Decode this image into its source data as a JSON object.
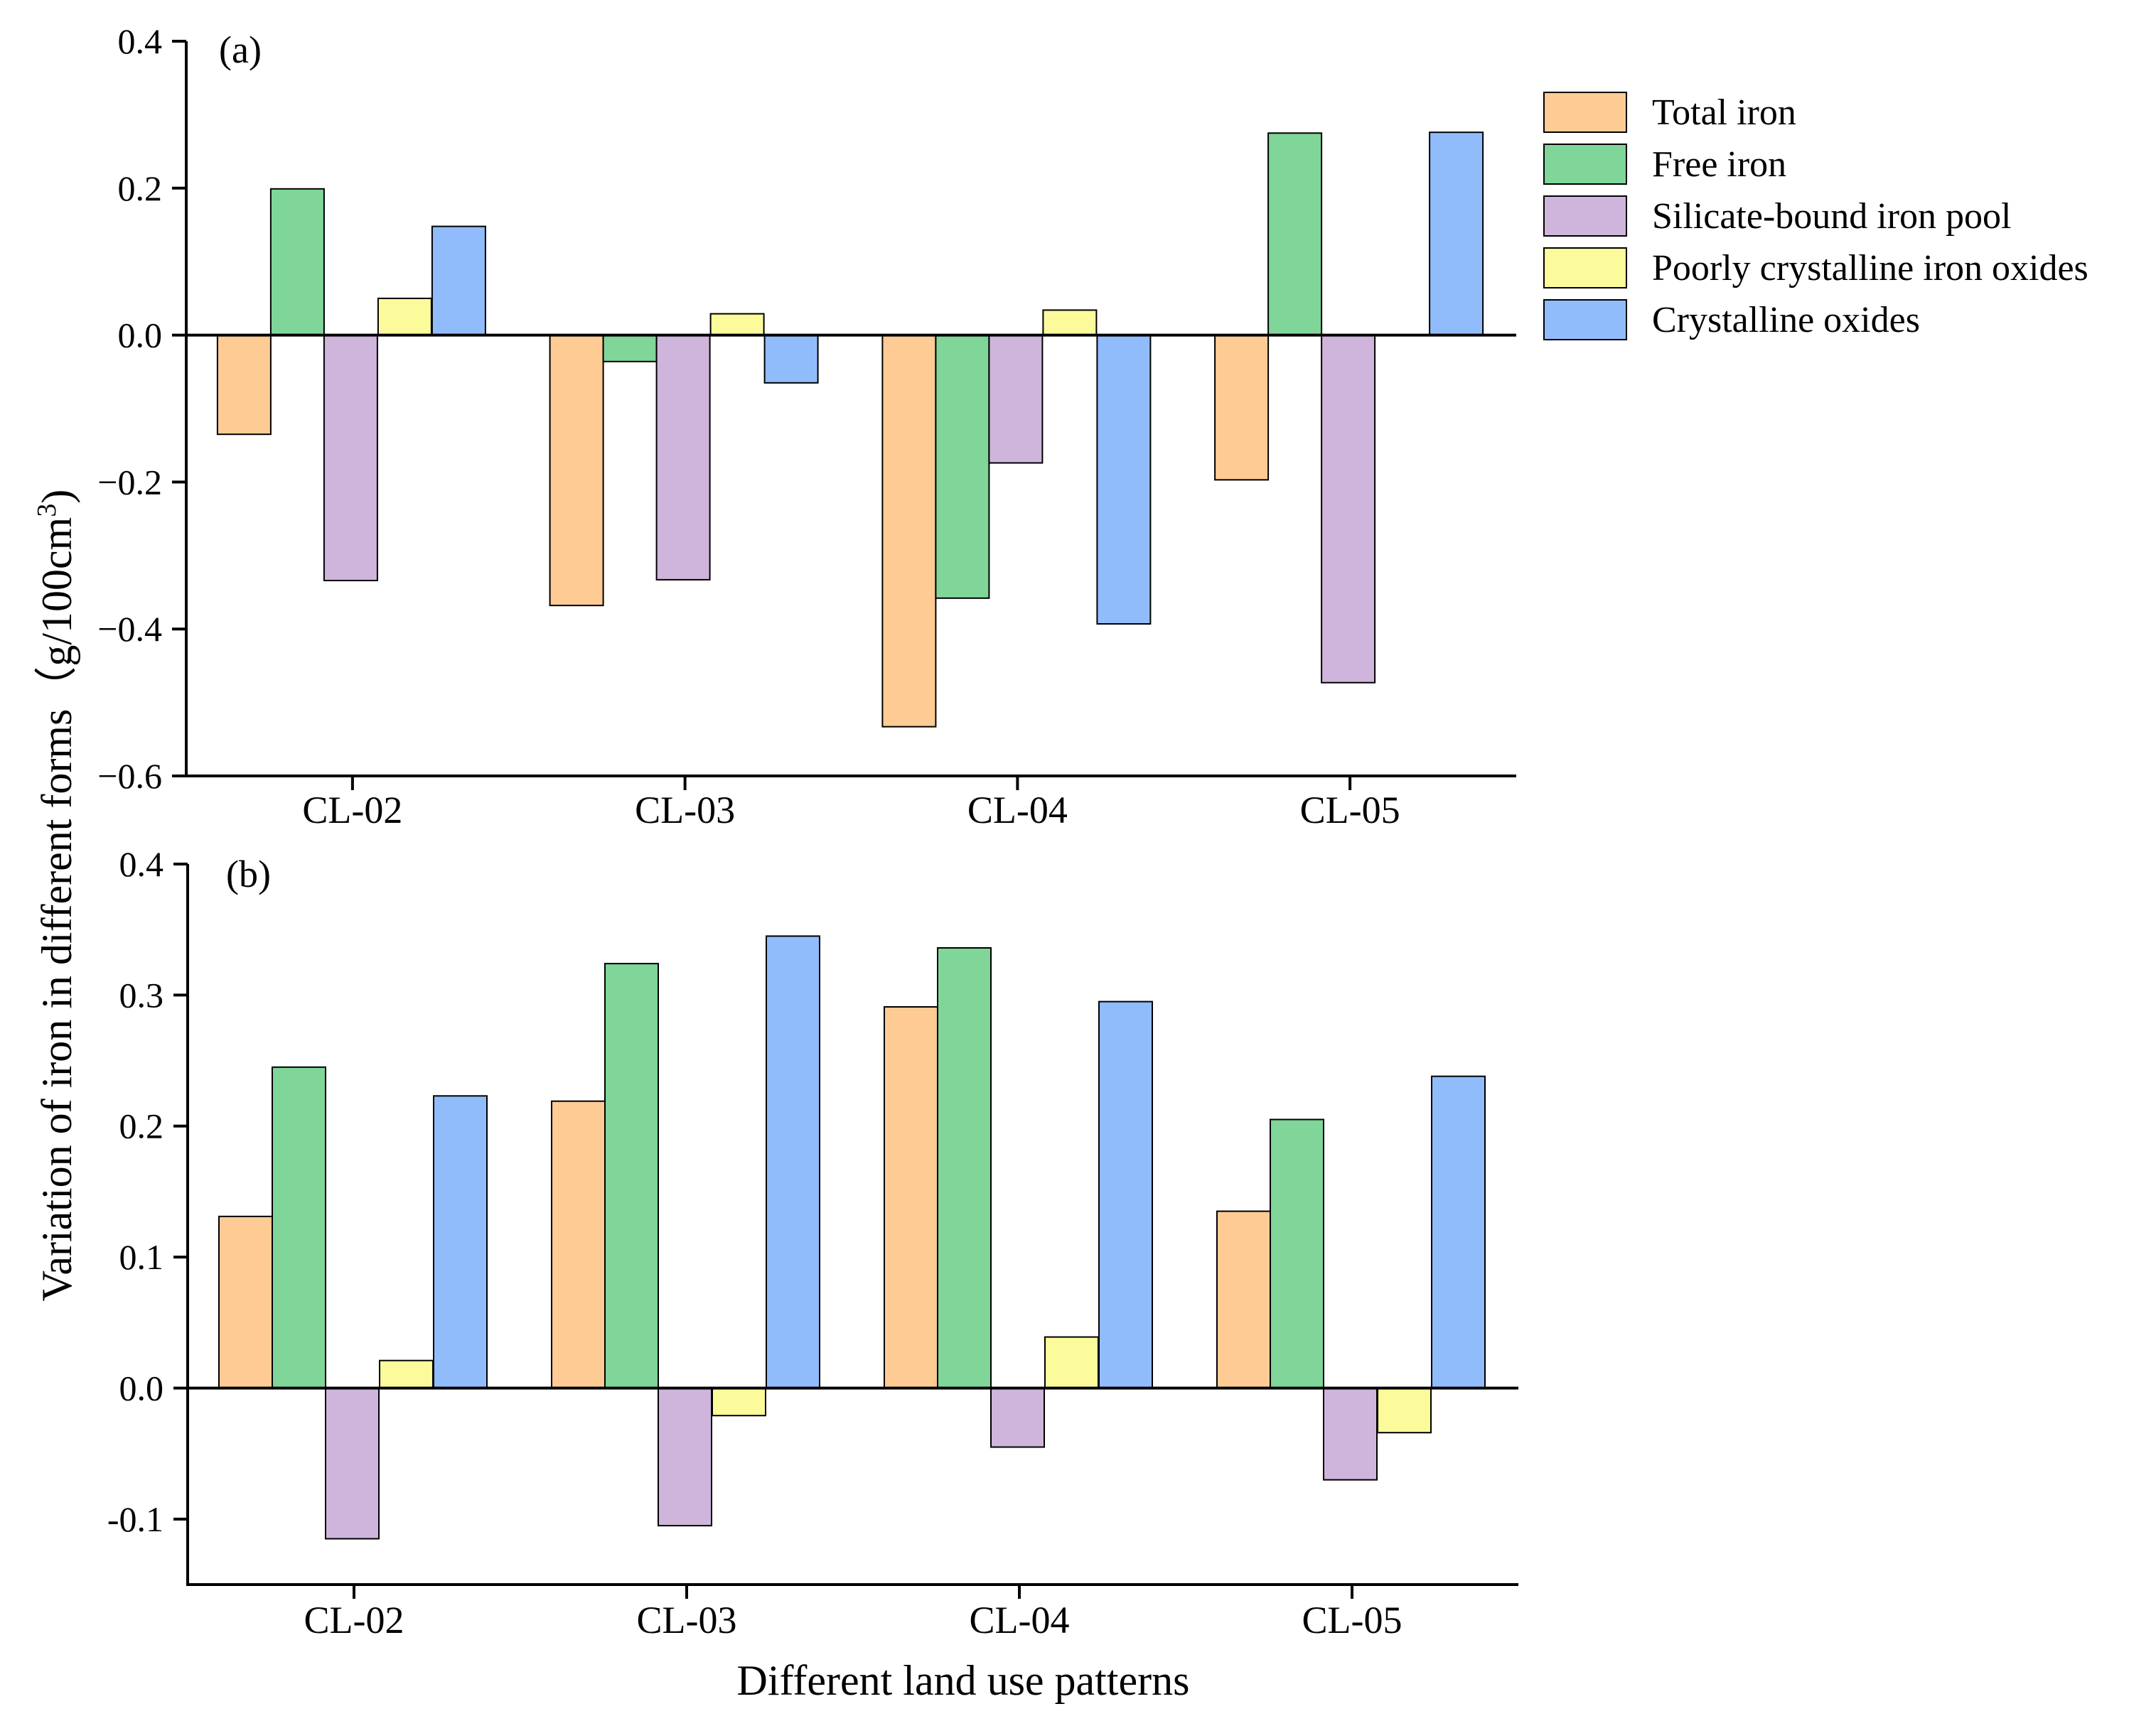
{
  "colors": {
    "total_iron": "#fdcb93",
    "free_iron": "#7fd698",
    "silicate_bound": "#cfb5db",
    "poorly_crystalline": "#fbfb9b",
    "crystalline": "#91bcfc"
  },
  "axis": {
    "ylabel_main": "Variation of iron in different forms",
    "ylabel_unit_open": "（g/100cm",
    "ylabel_unit_sup": "3",
    "ylabel_unit_close": ")",
    "xlabel": "Different land use patterns"
  },
  "chart_data": [
    {
      "type": "bar",
      "panel": "(a)",
      "categories": [
        "CL-02",
        "CL-03",
        "CL-04",
        "CL-05"
      ],
      "ylim": [
        -0.6,
        0.4
      ],
      "yticks": [
        "0.4",
        "0.2",
        "0.0",
        "−0.2",
        "−0.4",
        "−0.6"
      ],
      "ytick_values": [
        0.4,
        0.2,
        0.0,
        -0.2,
        -0.4,
        -0.6
      ],
      "series": [
        {
          "name": "Total iron",
          "color_key": "total_iron",
          "values": [
            -0.135,
            -0.368,
            -0.533,
            -0.197
          ]
        },
        {
          "name": "Free iron",
          "color_key": "free_iron",
          "values": [
            0.199,
            -0.036,
            -0.358,
            0.275
          ]
        },
        {
          "name": "Silicate-bound iron pool",
          "color_key": "silicate_bound",
          "values": [
            -0.334,
            -0.333,
            -0.174,
            -0.473
          ]
        },
        {
          "name": "Poorly crystalline iron oxides",
          "color_key": "poorly_crystalline",
          "values": [
            0.05,
            0.029,
            0.034,
            0.0
          ]
        },
        {
          "name": "Crystalline oxides",
          "color_key": "crystalline",
          "values": [
            0.148,
            -0.065,
            -0.393,
            0.276
          ]
        }
      ]
    },
    {
      "type": "bar",
      "panel": "(b)",
      "categories": [
        "CL-02",
        "CL-03",
        "CL-04",
        "CL-05"
      ],
      "ylim": [
        -0.15,
        0.4
      ],
      "yticks": [
        "0.4",
        "0.3",
        "0.2",
        "0.1",
        "0.0",
        "-0.1"
      ],
      "ytick_values": [
        0.4,
        0.3,
        0.2,
        0.1,
        0.0,
        -0.1
      ],
      "series": [
        {
          "name": "Total iron",
          "color_key": "total_iron",
          "values": [
            0.131,
            0.219,
            0.291,
            0.135
          ]
        },
        {
          "name": "Free iron",
          "color_key": "free_iron",
          "values": [
            0.245,
            0.324,
            0.336,
            0.205
          ]
        },
        {
          "name": "Silicate-bound iron pool",
          "color_key": "silicate_bound",
          "values": [
            -0.115,
            -0.105,
            -0.045,
            -0.07
          ]
        },
        {
          "name": "Poorly crystalline iron oxides",
          "color_key": "poorly_crystalline",
          "values": [
            0.021,
            -0.021,
            0.039,
            -0.034
          ]
        },
        {
          "name": "Crystalline oxides",
          "color_key": "crystalline",
          "values": [
            0.223,
            0.345,
            0.295,
            0.238
          ]
        }
      ]
    }
  ],
  "legend": {
    "entries": [
      {
        "label": "Total iron",
        "color_key": "total_iron"
      },
      {
        "label": "Free iron",
        "color_key": "free_iron"
      },
      {
        "label": "Silicate-bound iron pool",
        "color_key": "silicate_bound"
      },
      {
        "label": "Poorly crystalline iron oxides",
        "color_key": "poorly_crystalline"
      },
      {
        "label": "Crystalline oxides",
        "color_key": "crystalline"
      }
    ]
  }
}
